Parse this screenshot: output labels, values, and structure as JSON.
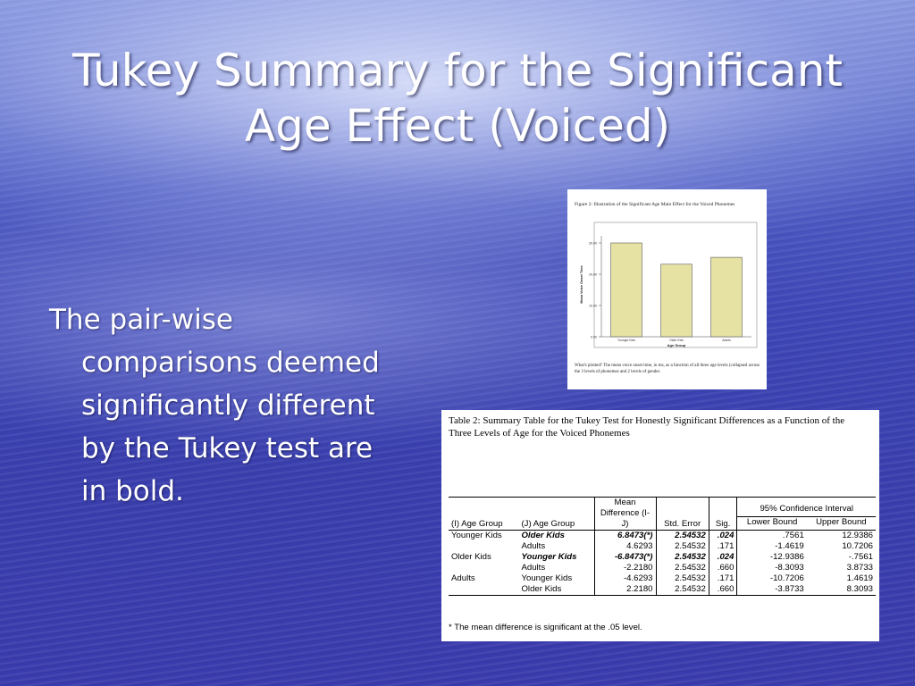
{
  "slide": {
    "title_line1": "Tukey Summary for the Significant",
    "title_line2": "Age Effect (Voiced)",
    "bullet": "The pair-wise comparisons deemed significantly different by the Tukey test are in bold."
  },
  "figure": {
    "caption": "Figure 2:  Illustration of the Significant Age Main Effect for the Voiced Phonemes",
    "note": "What's plotted?  The mean voice onset time, in ms, as a function of all three age levels (collapsed across the 3 levels of phonemes and 2 levels of gender.",
    "bar_color": "#e6e2a4"
  },
  "chart_data": {
    "type": "bar",
    "title": "",
    "xlabel": "Age Group",
    "ylabel": "Mean Voice Onset Time",
    "categories": [
      "Younger Kids",
      "Older Kids",
      "Adults"
    ],
    "values": [
      30.0,
      23.2,
      25.4
    ],
    "ylim": [
      0,
      30
    ],
    "yticks": [
      "0.00",
      "10.00",
      "20.00",
      "30.00"
    ]
  },
  "table": {
    "caption": "Table  2:  Summary Table for the Tukey Test for Honestly Significant Differences as a Function of the Three Levels of Age for the Voiced Phonemes",
    "headers": {
      "i_group": "(I) Age Group",
      "j_group": "(J) Age Group",
      "mean_diff": "Mean Difference (I-J)",
      "std_err": "Std. Error",
      "sig": "Sig.",
      "ci": "95% Confidence Interval",
      "lower": "Lower Bound",
      "upper": "Upper Bound"
    },
    "rows": [
      {
        "i": "Younger Kids",
        "j": "Older Kids",
        "diff": "6.8473(*)",
        "se": "2.54532",
        "sig": ".024",
        "lower": ".7561",
        "upper": "12.9386",
        "bold": true
      },
      {
        "i": "",
        "j": "Adults",
        "diff": "4.6293",
        "se": "2.54532",
        "sig": ".171",
        "lower": "-1.4619",
        "upper": "10.7206",
        "bold": false
      },
      {
        "i": "Older Kids",
        "j": "Younger Kids",
        "diff": "-6.8473(*)",
        "se": "2.54532",
        "sig": ".024",
        "lower": "-12.9386",
        "upper": "-.7561",
        "bold": true
      },
      {
        "i": "",
        "j": "Adults",
        "diff": "-2.2180",
        "se": "2.54532",
        "sig": ".660",
        "lower": "-8.3093",
        "upper": "3.8733",
        "bold": false
      },
      {
        "i": "Adults",
        "j": "Younger Kids",
        "diff": "-4.6293",
        "se": "2.54532",
        "sig": ".171",
        "lower": "-10.7206",
        "upper": "1.4619",
        "bold": false
      },
      {
        "i": "",
        "j": "Older Kids",
        "diff": "2.2180",
        "se": "2.54532",
        "sig": ".660",
        "lower": "-3.8733",
        "upper": "8.3093",
        "bold": false
      }
    ],
    "footnote": "*  The mean difference is significant at the .05 level."
  }
}
